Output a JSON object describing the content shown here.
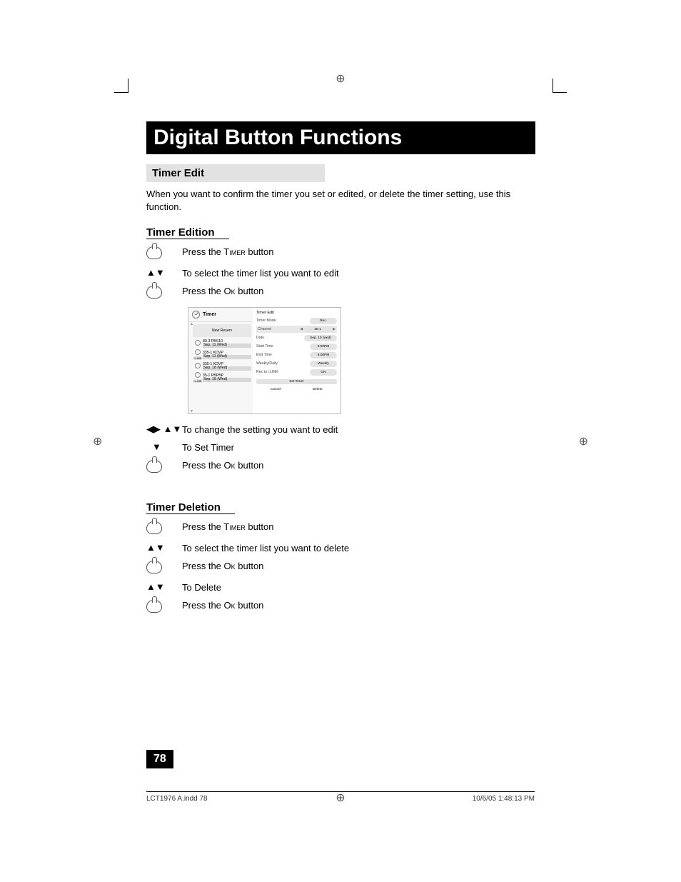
{
  "header": {
    "title": "Digital Button Functions"
  },
  "section1": {
    "heading": "Timer Edit",
    "intro": "When you want to confirm the timer you set or edited, or delete the timer setting, use this function."
  },
  "edition": {
    "heading": "Timer Edition",
    "step1_pre": "Press the T",
    "step1_sc": "imer",
    "step1_post": " button",
    "step2": "To select the timer list you want to edit",
    "step3_pre": "Press the O",
    "step3_sc": "k",
    "step3_post": " button",
    "step4": "To change the setting you want to edit",
    "step5": "To Set Timer",
    "step6_pre": "Press the O",
    "step6_sc": "k",
    "step6_post": " button"
  },
  "deletion": {
    "heading": "Timer Deletion",
    "step1_pre": "Press the T",
    "step1_sc": "imer",
    "step1_post": " button",
    "step2": "To select the timer list you want to delete",
    "step3_pre": "Press the O",
    "step3_sc": "k",
    "step3_post": " button",
    "step4": "To Delete",
    "step5_pre": "Press the O",
    "step5_sc": "k",
    "step5_post": " button"
  },
  "dialog": {
    "left_title": "Timer",
    "new_reserve": "New Reserv",
    "rows": [
      {
        "ch": "80-3",
        "name": "PBS10",
        "date": "Sep. 11 (Wed)",
        "ilink": false
      },
      {
        "ch": "335-1",
        "name": "KDVP",
        "date": "Sep. 11 (Wed)",
        "ilink": true
      },
      {
        "ch": "335-1",
        "name": "KDVP",
        "date": "Sep. 18 (Wed)",
        "ilink": false
      },
      {
        "ch": "35-1",
        "name": "PBPBP",
        "date": "Sep. 18 (Wed)",
        "ilink": true
      }
    ],
    "right_title": "Timer Edit",
    "fields": {
      "mode_label": "Timer Mode",
      "mode_val": "Rec.",
      "channel_label": "Channel",
      "channel_val": "35-1",
      "date_label": "Date",
      "date_val": "Sep. 10 (wed)",
      "start_label": "Start Time",
      "start_val": "5:00PM",
      "end_label": "End Time",
      "end_val": "6:00PM",
      "weekly_label": "Weekly/Daily",
      "weekly_val": "Weekly",
      "rec_label": "Rec to i.LINK",
      "rec_val": "ON"
    },
    "set_timer": "Set Timer",
    "cancel": "Cancel",
    "delete": "Delete"
  },
  "icons": {
    "updown": "▲▼",
    "down": "▼",
    "lrud": "◀▶ ▲▼"
  },
  "page_number": "78",
  "footer": {
    "left": "LCT1976 A.indd   78",
    "right": "10/6/05   1:48:13 PM"
  },
  "colors": {
    "title_bg": "#000000",
    "section_bg": "#e2e2e2",
    "pill_bg": "#e3e3e3"
  }
}
